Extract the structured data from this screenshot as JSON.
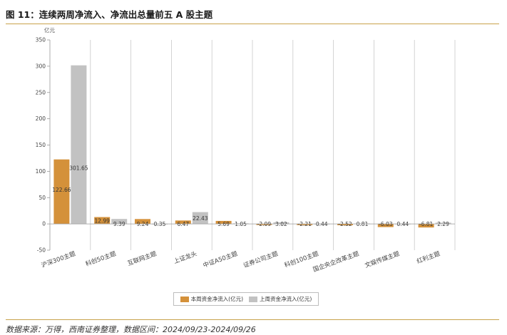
{
  "header": {
    "title": "图 11：连续两周净流入、净流出总量前五 A 股主题",
    "source": "数据来源：万得，西南证券整理，数据区间：2024/09/23-2024/09/26"
  },
  "chart_data": {
    "type": "bar",
    "unit_label": "亿元",
    "categories": [
      "沪深300主题",
      "科创50主题",
      "互联网主题",
      "上证龙头",
      "中证A50主题",
      "证券公司主题",
      "科创100主题",
      "国企央企改革主题",
      "文娱传媒主题",
      "红利主题"
    ],
    "series": [
      {
        "name": "本周资金净流入(亿元)",
        "color": "#d4913a",
        "values": [
          122.66,
          12.99,
          9.24,
          6.47,
          5.69,
          -2.09,
          -2.21,
          -2.52,
          -6.03,
          -6.81
        ]
      },
      {
        "name": "上周资金净流入(亿元)",
        "color": "#c2c2c2",
        "values": [
          301.65,
          9.39,
          0.35,
          22.43,
          1.05,
          3.02,
          0.44,
          0.81,
          0.44,
          2.29
        ]
      }
    ],
    "yticks": [
      -50,
      0,
      50,
      100,
      150,
      200,
      250,
      300,
      350
    ],
    "ylim": [
      -50,
      350
    ],
    "legend_position": "bottom",
    "grid": "vertical-category-separators"
  }
}
